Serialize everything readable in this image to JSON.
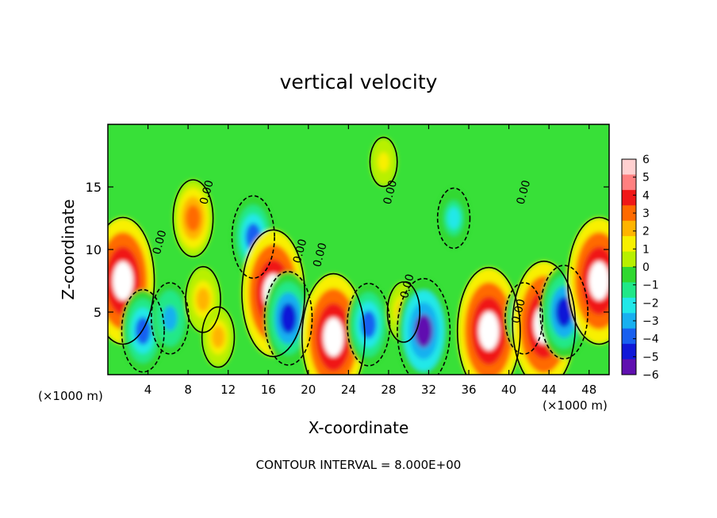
{
  "chart_data": {
    "type": "heatmap",
    "title": "vertical velocity",
    "xlabel": "X-coordinate",
    "ylabel": "Z-coordinate",
    "x_unit_left": "(×1000 m)",
    "x_unit_right": "(×1000 m)",
    "xlim": [
      0,
      50
    ],
    "ylim": [
      0,
      20
    ],
    "x_ticks": [
      4,
      8,
      12,
      16,
      20,
      24,
      28,
      32,
      36,
      40,
      44,
      48
    ],
    "x_tick_labels": [
      "4",
      "8",
      "12",
      "16",
      "20",
      "24",
      "28",
      "32",
      "36",
      "40",
      "44",
      "48"
    ],
    "y_ticks": [
      5,
      10,
      15
    ],
    "y_tick_labels": [
      "5",
      "10",
      "15"
    ],
    "colorbar": {
      "min": -6,
      "max": 6,
      "labels": [
        "6",
        "5",
        "4",
        "3",
        "2",
        "1",
        "0",
        "−1",
        "−2",
        "−3",
        "−4",
        "−5",
        "−6"
      ],
      "colors": [
        "#ffd0d0",
        "#ff8080",
        "#f01818",
        "#ff6a00",
        "#ffb400",
        "#f8f000",
        "#b8f000",
        "#30d830",
        "#20e888",
        "#20e8e8",
        "#18b0f0",
        "#1860f0",
        "#1018d8",
        "#6010b0"
      ]
    },
    "zero_contour_label": "0.00",
    "contour_interval": "CONTOUR INTERVAL = 8.000E+00",
    "features": [
      {
        "x": 1.5,
        "z": 7.5,
        "w": 8
      },
      {
        "x": 3.5,
        "z": 3.5,
        "w": -4
      },
      {
        "x": 6.2,
        "z": 4.5,
        "w": -3
      },
      {
        "x": 8.5,
        "z": 12.5,
        "w": 3.5
      },
      {
        "x": 9.5,
        "z": 6,
        "w": 2.5
      },
      {
        "x": 11,
        "z": 3,
        "w": 2
      },
      {
        "x": 14.5,
        "z": 11,
        "w": -4
      },
      {
        "x": 16.5,
        "z": 6.5,
        "w": 8
      },
      {
        "x": 18,
        "z": 4.5,
        "w": -5
      },
      {
        "x": 22.5,
        "z": 3,
        "w": 8
      },
      {
        "x": 26,
        "z": 4,
        "w": -4
      },
      {
        "x": 27.5,
        "z": 17,
        "w": 1
      },
      {
        "x": 29.5,
        "z": 5,
        "w": 2
      },
      {
        "x": 31.5,
        "z": 3.5,
        "w": -6
      },
      {
        "x": 34.5,
        "z": 12.5,
        "w": -2
      },
      {
        "x": 38,
        "z": 3.5,
        "w": 8
      },
      {
        "x": 41.5,
        "z": 4.5,
        "w": -3
      },
      {
        "x": 43.5,
        "z": 4,
        "w": 8
      },
      {
        "x": 45.5,
        "z": 5,
        "w": -5
      },
      {
        "x": 49,
        "z": 7.5,
        "w": 8
      }
    ]
  }
}
